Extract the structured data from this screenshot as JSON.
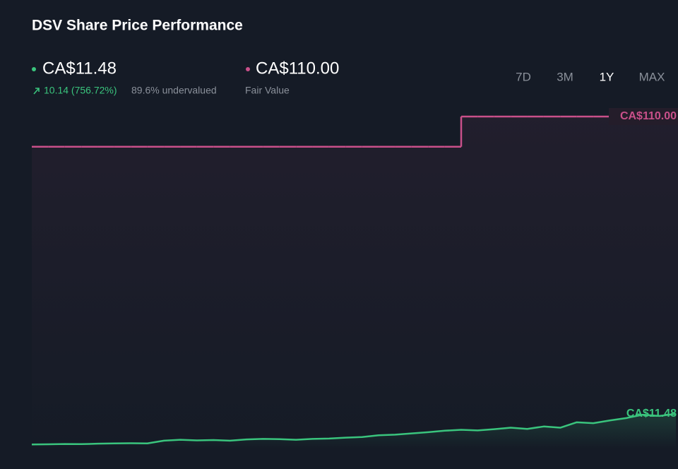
{
  "header": {
    "title": "DSV Share Price Performance",
    "price": "CA$11.48",
    "change": "10.14 (756.72%)",
    "valuation": "89.6% undervalued",
    "fair_value": "CA$110.00",
    "fair_value_label": "Fair Value"
  },
  "range_buttons": [
    "7D",
    "3M",
    "1Y",
    "MAX"
  ],
  "active_range": "1Y",
  "chart_data": {
    "type": "line",
    "ylim": [
      0,
      115
    ],
    "series": [
      {
        "color": "#c9508a",
        "line_style": "step",
        "end_label": "CA$110.00",
        "values": [
          100,
          100,
          100,
          100,
          100,
          100,
          100,
          100,
          100,
          100,
          100,
          100,
          100,
          100,
          100,
          100,
          100,
          100,
          100,
          100,
          100,
          100,
          100,
          100,
          100,
          100,
          110,
          110,
          110,
          110,
          110,
          110,
          110,
          110,
          110,
          110,
          110,
          110,
          110,
          110
        ]
      },
      {
        "color": "#3ac47d",
        "line_style": "line",
        "end_label": "CA$11.48",
        "values": [
          1.34,
          1.4,
          1.5,
          1.45,
          1.6,
          1.7,
          1.75,
          1.7,
          2.6,
          2.9,
          2.7,
          2.8,
          2.6,
          3.0,
          3.2,
          3.1,
          2.9,
          3.2,
          3.3,
          3.6,
          3.8,
          4.4,
          4.6,
          5.0,
          5.4,
          5.9,
          6.2,
          6.0,
          6.4,
          6.9,
          6.5,
          7.3,
          6.9,
          8.7,
          8.4,
          9.3,
          10.1,
          11.2,
          10.8,
          11.48
        ]
      }
    ]
  }
}
